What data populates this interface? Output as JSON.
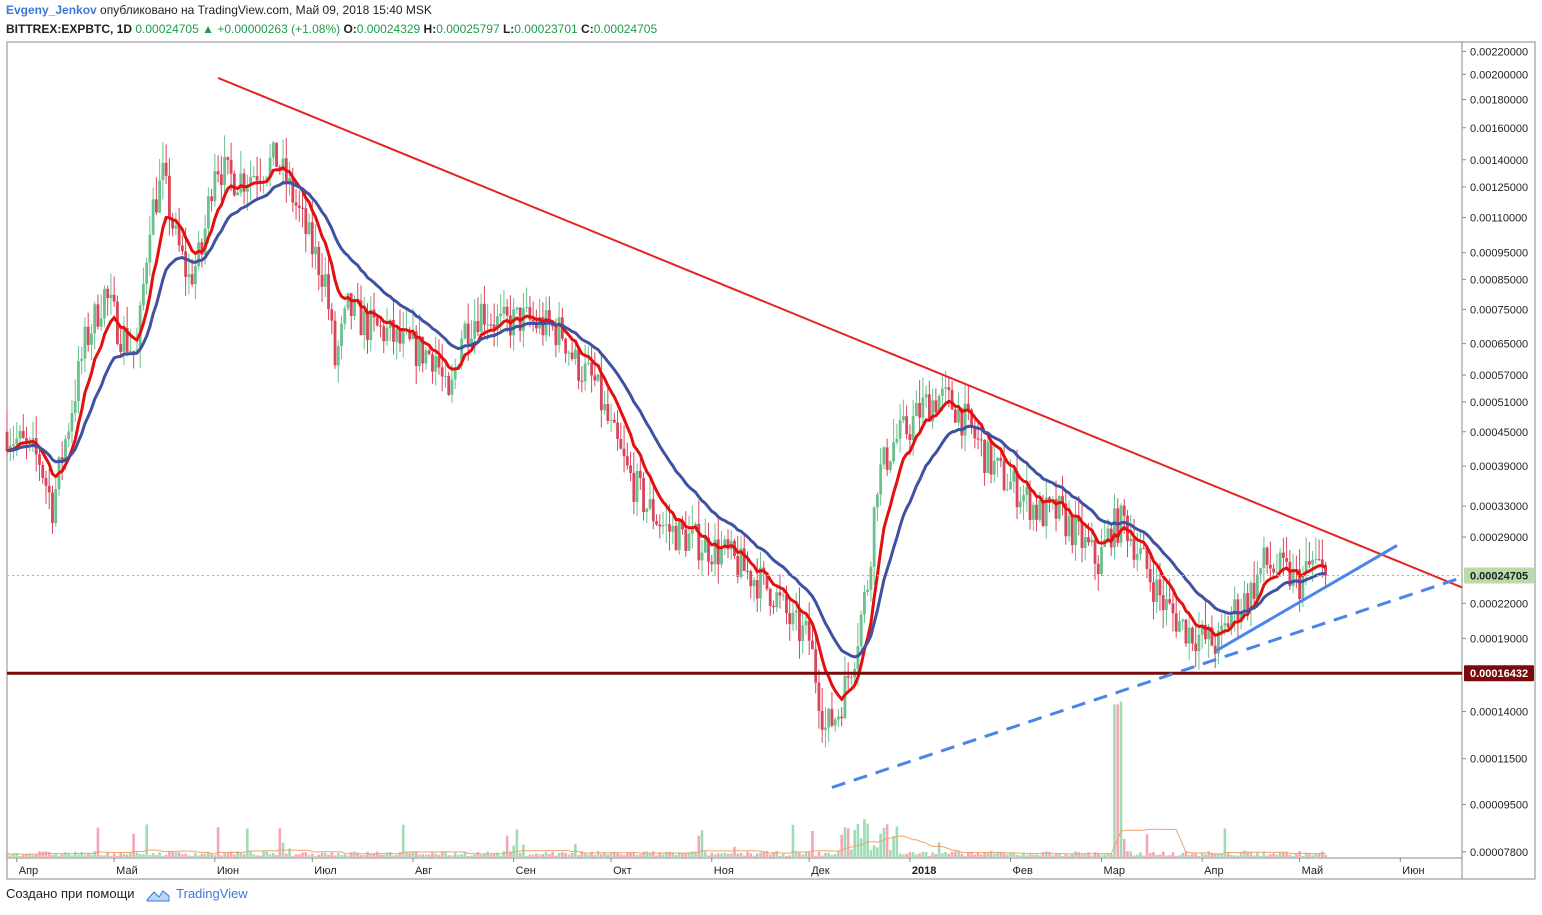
{
  "header": {
    "author": "Evgeny_Jenkov",
    "published": " опубликовано на TradingView.com, Май 09, 2018 15:40 MSK",
    "symbol": "BITTREX:EXPBTC, 1D",
    "last": "0.00024705",
    "change": "+0.00000263 (+1.08%)",
    "o_label": "O:",
    "o": "0.00024329",
    "h_label": "H:",
    "h": "0.00025797",
    "l_label": "L:",
    "l": "0.00023701",
    "c_label": "C:",
    "c": "0.00024705"
  },
  "footer": {
    "created": "Создано при помощи",
    "brand": "TradingView"
  },
  "colors": {
    "up": "#6bc08e",
    "down": "#d9455a",
    "volume_up": "#9fdcb6",
    "volume_down": "#f3a7b4",
    "ema_fast": "#e40f0f",
    "ema_slow": "#3f51a0",
    "trendline": "#e52525",
    "support": "#7b0a0a",
    "uptrend": "#4a86e8",
    "last_price_bg": "#b9dba7",
    "volume_ma": "#f0a36a"
  },
  "chart_data": {
    "type": "candlestick",
    "symbol": "BITTREX:EXPBTC",
    "interval": "1D",
    "y_scale": "log",
    "y_ticks": [
      "0.00220000",
      "0.00200000",
      "0.00180000",
      "0.00160000",
      "0.00140000",
      "0.00125000",
      "0.00110000",
      "0.00095000",
      "0.00085000",
      "0.00075000",
      "0.00065000",
      "0.00057000",
      "0.00051000",
      "0.00045000",
      "0.00039000",
      "0.00033000",
      "0.00029000",
      "0.00022000",
      "0.00019000",
      "0.00014000",
      "0.00011500",
      "0.00009500",
      "0.00007800"
    ],
    "x_ticks": [
      "Апр",
      "Май",
      "Июн",
      "Июл",
      "Авг",
      "Сен",
      "Окт",
      "Ноя",
      "Дек",
      "2018",
      "Фев",
      "Мар",
      "Апр",
      "Май",
      "Июн"
    ],
    "last_price_label": "0.00024705",
    "support_label": "0.00016432",
    "x_range": [
      "2017-03-29",
      "2018-06-20"
    ],
    "y_range": [
      7.6e-05,
      0.00226
    ],
    "closes": [
      [
        "2017-03-29",
        0.00045
      ],
      [
        "2017-04-08",
        0.0004
      ],
      [
        "2017-04-12",
        0.00033
      ],
      [
        "2017-04-18",
        0.0005
      ],
      [
        "2017-04-22",
        0.00065
      ],
      [
        "2017-04-28",
        0.0008
      ],
      [
        "2017-05-03",
        0.00068
      ],
      [
        "2017-05-08",
        0.00062
      ],
      [
        "2017-05-12",
        0.0011
      ],
      [
        "2017-05-16",
        0.0013
      ],
      [
        "2017-05-20",
        0.001
      ],
      [
        "2017-05-24",
        0.00085
      ],
      [
        "2017-05-28",
        0.00095
      ],
      [
        "2017-06-01",
        0.0014
      ],
      [
        "2017-06-05",
        0.0013
      ],
      [
        "2017-06-10",
        0.0013
      ],
      [
        "2017-06-15",
        0.00135
      ],
      [
        "2017-06-20",
        0.0014
      ],
      [
        "2017-06-25",
        0.0012
      ],
      [
        "2017-06-30",
        0.001
      ],
      [
        "2017-07-05",
        0.00085
      ],
      [
        "2017-07-08",
        0.0006
      ],
      [
        "2017-07-12",
        0.00075
      ],
      [
        "2017-07-18",
        0.0007
      ],
      [
        "2017-07-24",
        0.00068
      ],
      [
        "2017-07-28",
        0.00065
      ],
      [
        "2017-08-03",
        0.00063
      ],
      [
        "2017-08-08",
        0.00062
      ],
      [
        "2017-08-12",
        0.0005
      ],
      [
        "2017-08-16",
        0.00068
      ],
      [
        "2017-08-22",
        0.00075
      ],
      [
        "2017-08-28",
        0.0007
      ],
      [
        "2017-09-03",
        0.00072
      ],
      [
        "2017-09-10",
        0.0007
      ],
      [
        "2017-09-16",
        0.00068
      ],
      [
        "2017-09-20",
        0.0006
      ],
      [
        "2017-09-26",
        0.00055
      ],
      [
        "2017-10-01",
        0.00045
      ],
      [
        "2017-10-06",
        0.00038
      ],
      [
        "2017-10-12",
        0.00033
      ],
      [
        "2017-10-18",
        0.0003
      ],
      [
        "2017-10-24",
        0.00029
      ],
      [
        "2017-10-30",
        0.00028
      ],
      [
        "2017-11-05",
        0.00027
      ],
      [
        "2017-11-12",
        0.00025
      ],
      [
        "2017-11-20",
        0.00023
      ],
      [
        "2017-11-26",
        0.0002
      ],
      [
        "2017-12-01",
        0.00019
      ],
      [
        "2017-12-06",
        0.00013
      ],
      [
        "2017-12-10",
        0.00014
      ],
      [
        "2017-12-15",
        0.00018
      ],
      [
        "2017-12-19",
        0.00024
      ],
      [
        "2017-12-22",
        0.00037
      ],
      [
        "2017-12-27",
        0.00043
      ],
      [
        "2018-01-01",
        0.00046
      ],
      [
        "2018-01-05",
        0.0005
      ],
      [
        "2018-01-10",
        0.00052
      ],
      [
        "2018-01-15",
        0.0005
      ],
      [
        "2018-01-20",
        0.00045
      ],
      [
        "2018-01-25",
        0.0004
      ],
      [
        "2018-01-30",
        0.00037
      ],
      [
        "2018-02-04",
        0.00035
      ],
      [
        "2018-02-10",
        0.00032
      ],
      [
        "2018-02-16",
        0.00032
      ],
      [
        "2018-02-22",
        0.00029
      ],
      [
        "2018-02-28",
        0.00026
      ],
      [
        "2018-03-04",
        0.0003
      ],
      [
        "2018-03-08",
        0.00031
      ],
      [
        "2018-03-14",
        0.00026
      ],
      [
        "2018-03-20",
        0.00022
      ],
      [
        "2018-03-26",
        0.0002
      ],
      [
        "2018-04-01",
        0.00019
      ],
      [
        "2018-04-06",
        0.000185
      ],
      [
        "2018-04-10",
        0.00021
      ],
      [
        "2018-04-16",
        0.00023
      ],
      [
        "2018-04-20",
        0.00026
      ],
      [
        "2018-04-26",
        0.00025
      ],
      [
        "2018-05-01",
        0.00024
      ],
      [
        "2018-05-05",
        0.00026
      ],
      [
        "2018-05-09",
        0.00024705
      ]
    ],
    "annotations": {
      "downtrend_line": [
        [
          "2017-06-02",
          0.00197
        ],
        [
          "2018-06-20",
          0.000235
        ]
      ],
      "support_level": 0.00016432,
      "uptrend_solid": [
        [
          "2018-04-05",
          0.00018
        ],
        [
          "2018-05-31",
          0.00028
        ]
      ],
      "uptrend_dashed": [
        [
          "2017-12-08",
          0.000102
        ],
        [
          "2018-06-20",
          0.000245
        ]
      ]
    }
  }
}
